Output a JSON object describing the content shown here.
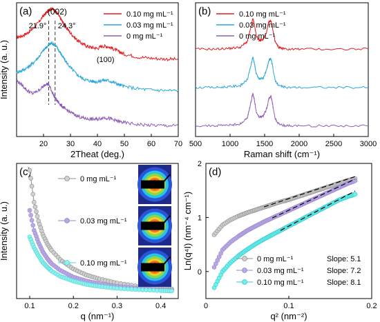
{
  "chart_data": [
    {
      "panel": "(a)",
      "type": "line",
      "xlabel": "2Theat (deg.)",
      "ylabel": "Intensity (a. u.)",
      "xlim": [
        10,
        70
      ],
      "xticks": [
        20,
        30,
        40,
        50,
        60,
        70
      ],
      "annotations": [
        "(002)",
        "21.9°",
        "24.3°",
        "(100)"
      ],
      "vlines": [
        21.9,
        24.3
      ],
      "legend_position": "top-right",
      "series": [
        {
          "name": "0.10 mg mL⁻¹",
          "color": "#e41a1c",
          "offset": 2.0,
          "x": [
            10,
            12,
            14,
            16,
            18,
            20,
            21,
            22,
            23,
            24,
            25,
            26,
            27,
            28,
            30,
            32,
            34,
            36,
            38,
            40,
            42,
            44,
            46,
            48,
            50,
            55,
            60,
            65,
            70
          ],
          "y": [
            1.2,
            1.25,
            1.35,
            1.5,
            1.7,
            1.95,
            2.05,
            2.15,
            2.2,
            2.15,
            2.05,
            1.9,
            1.75,
            1.6,
            1.35,
            1.15,
            1.0,
            0.9,
            0.85,
            0.82,
            0.9,
            0.88,
            0.8,
            0.7,
            0.62,
            0.52,
            0.48,
            0.45,
            0.44
          ]
        },
        {
          "name": "0.03 mg mL⁻¹",
          "color": "#29a8d8",
          "offset": 1.0,
          "x": [
            10,
            12,
            14,
            16,
            18,
            20,
            21,
            22,
            23,
            24,
            25,
            26,
            27,
            28,
            30,
            32,
            34,
            36,
            38,
            40,
            42,
            44,
            46,
            48,
            50,
            55,
            60,
            65,
            70
          ],
          "y": [
            1.0,
            1.05,
            1.15,
            1.3,
            1.5,
            1.75,
            1.85,
            1.95,
            2.0,
            1.95,
            1.85,
            1.7,
            1.55,
            1.4,
            1.15,
            0.95,
            0.8,
            0.72,
            0.68,
            0.66,
            0.72,
            0.7,
            0.64,
            0.56,
            0.5,
            0.42,
            0.38,
            0.36,
            0.35
          ]
        },
        {
          "name": "0 mg mL⁻¹",
          "color": "#8e5cb5",
          "offset": 0.0,
          "x": [
            10,
            12,
            14,
            16,
            18,
            20,
            21,
            22,
            23,
            24,
            25,
            26,
            27,
            28,
            30,
            32,
            34,
            36,
            38,
            40,
            42,
            44,
            46,
            48,
            50,
            55,
            60,
            65,
            70
          ],
          "y": [
            1.7,
            1.55,
            1.35,
            1.25,
            1.35,
            1.5,
            1.6,
            1.55,
            1.35,
            1.15,
            1.0,
            0.9,
            0.8,
            0.72,
            0.6,
            0.5,
            0.42,
            0.38,
            0.36,
            0.36,
            0.42,
            0.4,
            0.34,
            0.28,
            0.24,
            0.18,
            0.15,
            0.14,
            0.13
          ]
        }
      ]
    },
    {
      "panel": "(b)",
      "type": "line",
      "xlabel": "Raman shift (cm⁻¹)",
      "ylabel": "",
      "xlim": [
        500,
        3000
      ],
      "xticks": [
        500,
        1000,
        1500,
        2000,
        2500,
        3000
      ],
      "legend_position": "top-left",
      "series": [
        {
          "name": "0.10 mg mL⁻¹",
          "color": "#e41a1c",
          "offset": 2.0,
          "x": [
            500,
            800,
            1000,
            1150,
            1250,
            1300,
            1330,
            1350,
            1380,
            1420,
            1480,
            1530,
            1560,
            1590,
            1610,
            1650,
            1700,
            1800,
            2000,
            2500,
            3000
          ],
          "y": [
            0.1,
            0.1,
            0.12,
            0.15,
            0.3,
            0.65,
            0.9,
            0.75,
            0.45,
            0.32,
            0.35,
            0.55,
            0.8,
            0.85,
            0.7,
            0.3,
            0.15,
            0.1,
            0.1,
            0.1,
            0.1
          ]
        },
        {
          "name": "0.03 mg mL⁻¹",
          "color": "#29a8d8",
          "offset": 1.0,
          "x": [
            500,
            800,
            1000,
            1150,
            1250,
            1300,
            1330,
            1350,
            1380,
            1420,
            1480,
            1530,
            1560,
            1590,
            1610,
            1650,
            1700,
            1800,
            2000,
            2500,
            3000
          ],
          "y": [
            0.1,
            0.1,
            0.12,
            0.15,
            0.3,
            0.65,
            0.9,
            0.75,
            0.45,
            0.32,
            0.35,
            0.55,
            0.8,
            0.85,
            0.7,
            0.3,
            0.15,
            0.1,
            0.1,
            0.1,
            0.1
          ]
        },
        {
          "name": "0 mg mL⁻¹",
          "color": "#8e5cb5",
          "offset": 0.0,
          "x": [
            500,
            800,
            1000,
            1150,
            1250,
            1300,
            1330,
            1350,
            1380,
            1420,
            1480,
            1530,
            1560,
            1590,
            1610,
            1650,
            1700,
            1800,
            2000,
            2500,
            3000
          ],
          "y": [
            0.1,
            0.1,
            0.12,
            0.15,
            0.3,
            0.7,
            0.95,
            0.8,
            0.45,
            0.32,
            0.35,
            0.55,
            0.8,
            0.88,
            0.72,
            0.3,
            0.15,
            0.1,
            0.1,
            0.1,
            0.1
          ]
        }
      ]
    },
    {
      "panel": "(c)",
      "type": "line",
      "xlabel": "q (nm⁻¹)",
      "ylabel": "Intensity (a. u.)",
      "xlim": [
        0.07,
        0.44
      ],
      "xticks": [
        0.1,
        0.2,
        0.3,
        0.4
      ],
      "legend_position": "top-center",
      "series": [
        {
          "name": "0 mg mL⁻¹",
          "color": "#8c8c8c",
          "fill": "#d0d0d0",
          "x": [
            0.1,
            0.11,
            0.12,
            0.13,
            0.14,
            0.15,
            0.17,
            0.2,
            0.23,
            0.26,
            0.3,
            0.35,
            0.4,
            0.43
          ],
          "y": [
            10,
            7.6,
            6.2,
            5.2,
            4.5,
            4.0,
            3.3,
            2.6,
            2.15,
            1.85,
            1.55,
            1.3,
            1.15,
            1.1
          ]
        },
        {
          "name": "0.03 mg mL⁻¹",
          "color": "#9a86cf",
          "fill": "#b9a9e3",
          "x": [
            0.1,
            0.11,
            0.12,
            0.13,
            0.14,
            0.15,
            0.17,
            0.2,
            0.23,
            0.26,
            0.3,
            0.35,
            0.4,
            0.43
          ],
          "y": [
            7.0,
            5.5,
            4.6,
            3.9,
            3.4,
            3.0,
            2.5,
            2.0,
            1.7,
            1.5,
            1.3,
            1.15,
            1.05,
            1.0
          ]
        },
        {
          "name": "0.10 mg mL⁻¹",
          "color": "#4ed3d3",
          "fill": "#8ff0f0",
          "x": [
            0.1,
            0.11,
            0.12,
            0.13,
            0.14,
            0.15,
            0.17,
            0.2,
            0.23,
            0.26,
            0.3,
            0.35,
            0.4,
            0.43
          ],
          "y": [
            5.0,
            4.2,
            3.6,
            3.1,
            2.75,
            2.45,
            2.05,
            1.7,
            1.45,
            1.3,
            1.15,
            1.05,
            0.98,
            0.95
          ]
        }
      ]
    },
    {
      "panel": "(d)",
      "type": "scatter",
      "xlabel": "q² (nm⁻²)",
      "ylabel": "Ln(q⁴I) (nm⁻⁴ cm⁻¹)",
      "xlim": [
        0,
        0.2
      ],
      "ylim": [
        -0.5,
        2.0
      ],
      "xticks": [
        0,
        0.1,
        0.2
      ],
      "yticks": [
        0,
        1,
        2
      ],
      "legend_position": "bottom-right",
      "series": [
        {
          "name": "0 mg mL⁻¹",
          "slope_label": "Slope: 5.1",
          "color": "#8c8c8c",
          "fill": "#d0d0d0",
          "x": [
            0.01,
            0.02,
            0.03,
            0.04,
            0.05,
            0.06,
            0.07,
            0.08,
            0.09,
            0.1,
            0.11,
            0.12,
            0.13,
            0.14,
            0.15,
            0.16,
            0.17,
            0.18
          ],
          "y": [
            0.68,
            0.86,
            0.96,
            1.03,
            1.09,
            1.14,
            1.19,
            1.24,
            1.29,
            1.33,
            1.38,
            1.43,
            1.48,
            1.53,
            1.58,
            1.63,
            1.68,
            1.72
          ],
          "fit": [
            [
              0.07,
              1.195
            ],
            [
              0.18,
              1.756
            ]
          ]
        },
        {
          "name": "0.03 mg mL⁻¹",
          "slope_label": "Slope: 7.2",
          "color": "#9a86cf",
          "fill": "#b9a9e3",
          "x": [
            0.01,
            0.02,
            0.03,
            0.04,
            0.05,
            0.06,
            0.07,
            0.08,
            0.09,
            0.1,
            0.11,
            0.12,
            0.13,
            0.14,
            0.15,
            0.16,
            0.17,
            0.18
          ],
          "y": [
            0.08,
            0.4,
            0.55,
            0.66,
            0.76,
            0.84,
            0.92,
            0.99,
            1.06,
            1.13,
            1.2,
            1.27,
            1.34,
            1.41,
            1.48,
            1.55,
            1.62,
            1.68
          ],
          "fit": [
            [
              0.08,
              0.99
            ],
            [
              0.18,
              1.71
            ]
          ]
        },
        {
          "name": "0.10 mg mL⁻¹",
          "slope_label": "Slope: 8.1",
          "color": "#2fc9c9",
          "fill": "#6fefef",
          "x": [
            0.01,
            0.02,
            0.03,
            0.04,
            0.05,
            0.06,
            0.07,
            0.08,
            0.09,
            0.1,
            0.11,
            0.12,
            0.13,
            0.14,
            0.15,
            0.16,
            0.17,
            0.18
          ],
          "y": [
            -0.3,
            0.0,
            0.17,
            0.3,
            0.41,
            0.51,
            0.6,
            0.68,
            0.76,
            0.84,
            0.92,
            1.0,
            1.08,
            1.16,
            1.24,
            1.32,
            1.38,
            1.43
          ],
          "fit": [
            [
              0.09,
              0.76
            ],
            [
              0.18,
              1.49
            ]
          ]
        }
      ]
    }
  ]
}
